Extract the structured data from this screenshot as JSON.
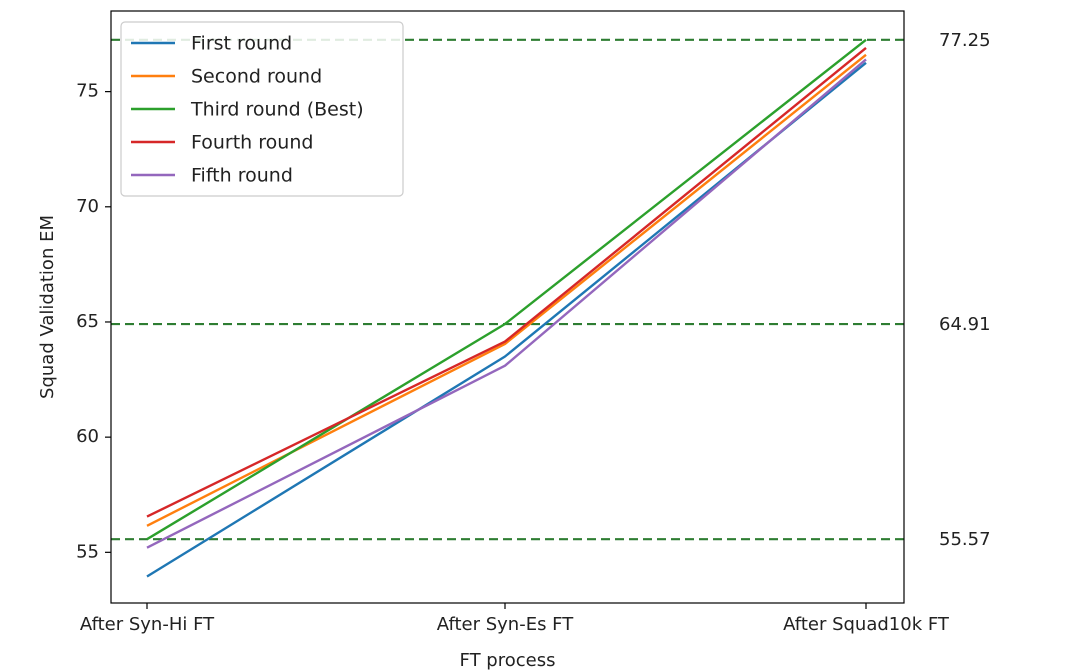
{
  "chart_data": {
    "type": "line",
    "title": "",
    "xlabel": "FT process",
    "ylabel": "Squad Validation EM",
    "categories": [
      "After Syn-Hi FT",
      "After Syn-Es FT",
      "After Squad10k FT"
    ],
    "ylim": [
      52.8,
      78.5
    ],
    "yticks": [
      55,
      60,
      65,
      70,
      75
    ],
    "grid": false,
    "legend_position": "top-left",
    "series": [
      {
        "name": "First round",
        "color": "#1f77b4",
        "values": [
          53.95,
          63.5,
          76.25
        ]
      },
      {
        "name": "Second round",
        "color": "#ff7f0e",
        "values": [
          56.15,
          64.05,
          76.6
        ]
      },
      {
        "name": "Third round (Best)",
        "color": "#2ca02c",
        "values": [
          55.57,
          64.91,
          77.25
        ]
      },
      {
        "name": "Fourth round",
        "color": "#d62728",
        "values": [
          56.55,
          64.15,
          76.9
        ]
      },
      {
        "name": "Fifth round",
        "color": "#9467bd",
        "values": [
          55.2,
          63.1,
          76.4
        ]
      }
    ],
    "reference_lines": [
      {
        "value": 77.25,
        "label": "77.25",
        "color": "#2e7d32",
        "style": "dashed"
      },
      {
        "value": 64.91,
        "label": "64.91",
        "color": "#2e7d32",
        "style": "dashed"
      },
      {
        "value": 55.57,
        "label": "55.57",
        "color": "#2e7d32",
        "style": "dashed"
      }
    ]
  }
}
